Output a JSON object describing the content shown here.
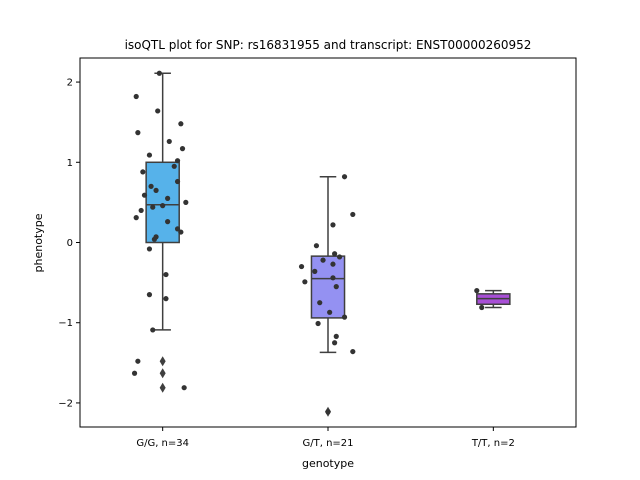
{
  "chart_data": {
    "type": "box",
    "title": "isoQTL plot for SNP: rs16831955 and transcript: ENST00000260952",
    "xlabel": "genotype",
    "ylabel": "phenotype",
    "ylim": [
      -2.3,
      2.3
    ],
    "yticks": [
      -2,
      -1,
      0,
      1,
      2
    ],
    "ytick_labels": [
      "−2",
      "−1",
      "0",
      "1",
      "2"
    ],
    "grid": false,
    "categories": [
      "G/G, n=34",
      "G/T, n=21",
      "T/T, n=2"
    ],
    "boxes": [
      {
        "category": "G/G, n=34",
        "color": "#56b2ea",
        "q1": 0.0,
        "median": 0.47,
        "q3": 1.0,
        "whisker_low": -1.09,
        "whisker_high": 2.11,
        "outliers": [
          -1.48,
          -1.63,
          -1.81
        ],
        "points": [
          [
            -0.02,
            2.11
          ],
          [
            -0.16,
            1.82
          ],
          [
            -0.03,
            1.64
          ],
          [
            0.11,
            1.48
          ],
          [
            -0.15,
            1.37
          ],
          [
            0.04,
            1.26
          ],
          [
            0.12,
            1.17
          ],
          [
            -0.08,
            1.09
          ],
          [
            0.09,
            1.02
          ],
          [
            0.07,
            0.95
          ],
          [
            -0.12,
            0.88
          ],
          [
            0.09,
            0.76
          ],
          [
            -0.07,
            0.7
          ],
          [
            -0.04,
            0.65
          ],
          [
            -0.11,
            0.59
          ],
          [
            0.03,
            0.55
          ],
          [
            0.14,
            0.5
          ],
          [
            0.0,
            0.46
          ],
          [
            -0.13,
            0.4
          ],
          [
            -0.06,
            0.44
          ],
          [
            -0.16,
            0.31
          ],
          [
            0.03,
            0.26
          ],
          [
            0.09,
            0.17
          ],
          [
            0.11,
            0.13
          ],
          [
            -0.04,
            0.07
          ],
          [
            -0.05,
            0.04
          ],
          [
            -0.08,
            -0.08
          ],
          [
            0.02,
            -0.4
          ],
          [
            -0.08,
            -0.65
          ],
          [
            0.02,
            -0.7
          ],
          [
            -0.06,
            -1.09
          ],
          [
            -0.15,
            -1.48
          ],
          [
            -0.17,
            -1.63
          ],
          [
            0.13,
            -1.81
          ]
        ]
      },
      {
        "category": "G/T, n=21",
        "color": "#9491f2",
        "q1": -0.94,
        "median": -0.45,
        "q3": -0.17,
        "whisker_low": -1.37,
        "whisker_high": 0.82,
        "outliers": [
          -2.11
        ],
        "points": [
          [
            0.1,
            0.82
          ],
          [
            0.15,
            0.35
          ],
          [
            0.03,
            0.22
          ],
          [
            -0.07,
            -0.04
          ],
          [
            0.04,
            -0.14
          ],
          [
            0.07,
            -0.18
          ],
          [
            -0.03,
            -0.22
          ],
          [
            0.03,
            -0.27
          ],
          [
            -0.16,
            -0.3
          ],
          [
            -0.08,
            -0.36
          ],
          [
            0.03,
            -0.44
          ],
          [
            -0.14,
            -0.49
          ],
          [
            0.05,
            -0.55
          ],
          [
            -0.05,
            -0.75
          ],
          [
            0.01,
            -0.87
          ],
          [
            0.1,
            -0.93
          ],
          [
            -0.06,
            -1.01
          ],
          [
            0.05,
            -1.17
          ],
          [
            0.04,
            -1.25
          ],
          [
            0.15,
            -1.36
          ],
          [
            0.0,
            -2.11
          ]
        ]
      },
      {
        "category": "T/T, n=2",
        "color": "#a84fd6",
        "q1": -0.77,
        "median": -0.7,
        "q3": -0.64,
        "whisker_low": -0.81,
        "whisker_high": -0.6,
        "outliers": [],
        "points": [
          [
            -0.1,
            -0.6
          ],
          [
            -0.07,
            -0.81
          ]
        ]
      }
    ]
  }
}
